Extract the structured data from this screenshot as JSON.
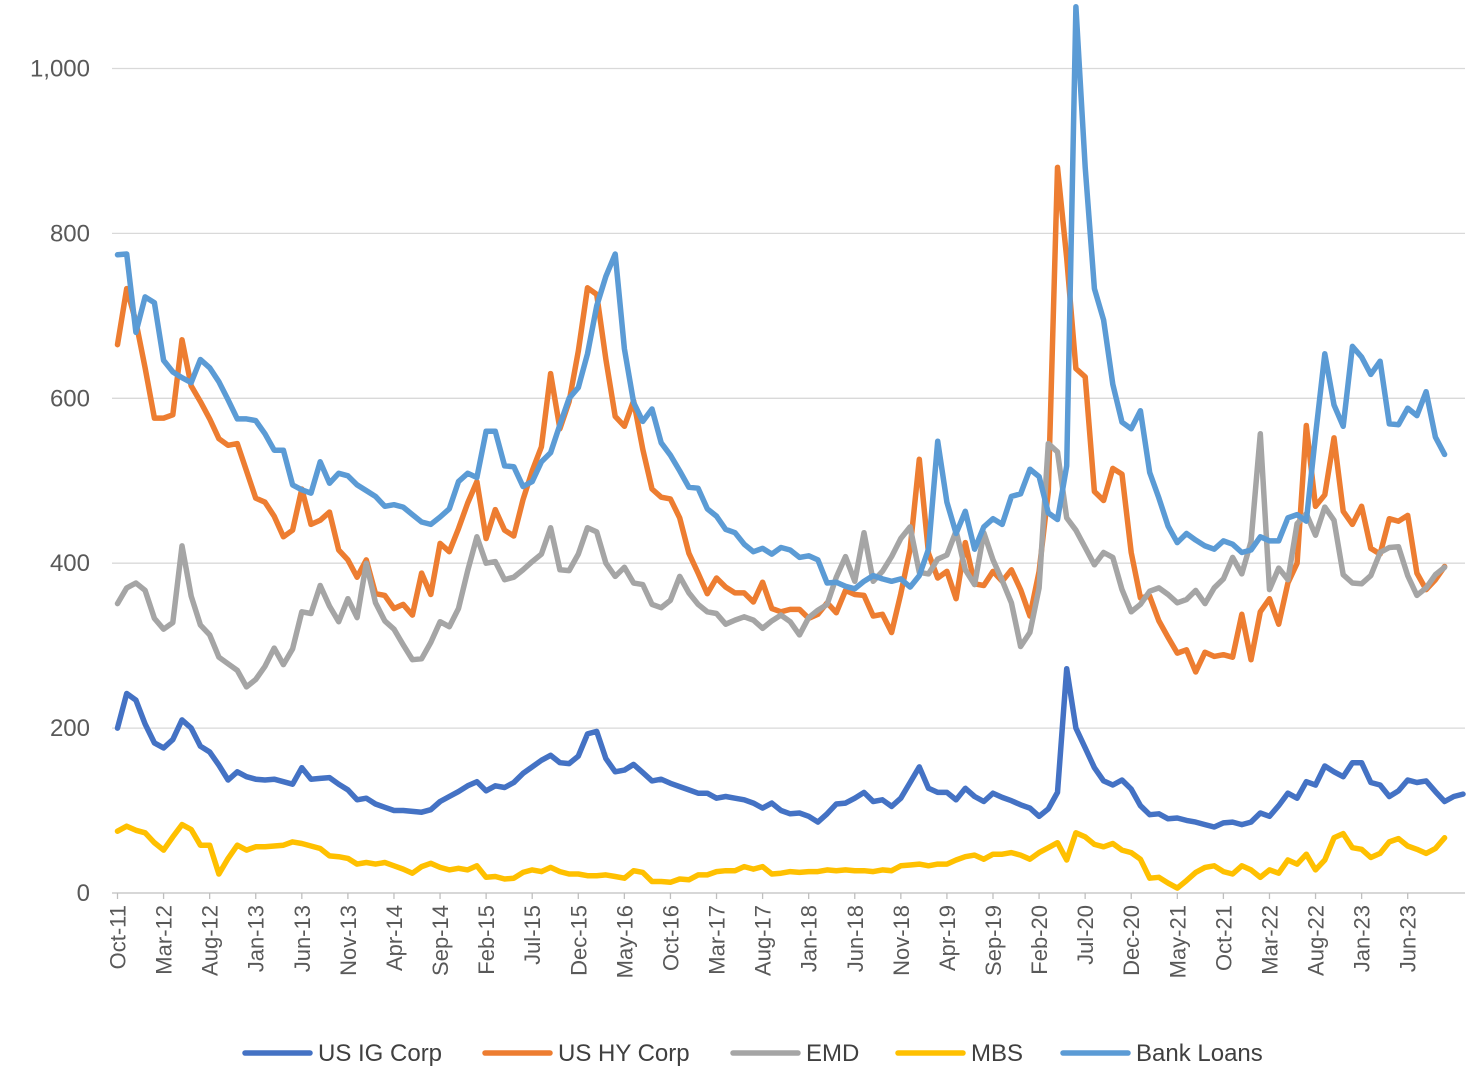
{
  "chart_data": {
    "type": "line",
    "title": "",
    "xlabel": "",
    "ylabel": "",
    "ylim": [
      0,
      1080
    ],
    "yticks": [
      0,
      200,
      400,
      600,
      800,
      1000
    ],
    "ytick_labels": [
      "0",
      "200",
      "400",
      "600",
      "800",
      "1,000"
    ],
    "grid": "horizontal",
    "legend": "bottom",
    "x_start": "Oct-11",
    "x_step_months": 1,
    "xtick_labels": [
      "Oct-11",
      "Mar-12",
      "Aug-12",
      "Jan-13",
      "Jun-13",
      "Nov-13",
      "Apr-14",
      "Sep-14",
      "Feb-15",
      "Jul-15",
      "Dec-15",
      "May-16",
      "Oct-16",
      "Mar-17",
      "Aug-17",
      "Jan-18",
      "Jun-18",
      "Nov-18",
      "Apr-19",
      "Sep-19",
      "Feb-20",
      "Jul-20",
      "Dec-20",
      "May-21",
      "Oct-21",
      "Mar-22",
      "Aug-22",
      "Jan-23",
      "Jun-23"
    ],
    "series": [
      {
        "name": "US IG Corp",
        "color": "#4472c4",
        "values": [
          200,
          242,
          234,
          205,
          182,
          176,
          186,
          210,
          200,
          178,
          171,
          155,
          137,
          147,
          141,
          138,
          137,
          138,
          135,
          132,
          152,
          138,
          139,
          140,
          132,
          125,
          113,
          115,
          108,
          104,
          100,
          100,
          99,
          98,
          101,
          111,
          117,
          123,
          130,
          135,
          124,
          130,
          128,
          134,
          145,
          153,
          161,
          167,
          158,
          157,
          166,
          193,
          196,
          163,
          147,
          149,
          156,
          146,
          136,
          138,
          133,
          129,
          125,
          121,
          121,
          115,
          117,
          115,
          113,
          109,
          103,
          109,
          100,
          96,
          97,
          93,
          86,
          96,
          108,
          109,
          115,
          122,
          111,
          113,
          105,
          115,
          134,
          153,
          127,
          122,
          122,
          113,
          127,
          117,
          111,
          121,
          116,
          112,
          107,
          103,
          93,
          102,
          122,
          272,
          200,
          176,
          152,
          136,
          131,
          137,
          126,
          106,
          95,
          96,
          90,
          91,
          88,
          86,
          83,
          80,
          85,
          86,
          83,
          86,
          97,
          93,
          106,
          121,
          115,
          135,
          131,
          154,
          147,
          141,
          158,
          158,
          134,
          131,
          117,
          124,
          137,
          134,
          136,
          123,
          111,
          117,
          120
        ]
      },
      {
        "name": "US HY Corp",
        "color": "#ed7d31",
        "values": [
          665,
          733,
          693,
          637,
          576,
          576,
          580,
          671,
          615,
          596,
          575,
          551,
          543,
          545,
          512,
          479,
          474,
          457,
          432,
          440,
          490,
          447,
          452,
          462,
          416,
          404,
          383,
          404,
          363,
          361,
          345,
          350,
          337,
          388,
          362,
          424,
          414,
          442,
          473,
          499,
          430,
          465,
          440,
          433,
          477,
          512,
          541,
          630,
          563,
          596,
          657,
          734,
          726,
          647,
          578,
          566,
          597,
          538,
          490,
          480,
          478,
          455,
          412,
          388,
          363,
          382,
          371,
          364,
          364,
          353,
          377,
          345,
          341,
          344,
          344,
          333,
          338,
          352,
          340,
          367,
          362,
          361,
          336,
          338,
          316,
          363,
          417,
          526,
          412,
          382,
          390,
          357,
          425,
          375,
          373,
          390,
          378,
          392,
          368,
          336,
          390,
          487,
          880,
          770,
          636,
          626,
          487,
          476,
          515,
          508,
          413,
          358,
          360,
          330,
          310,
          291,
          295,
          268,
          292,
          287,
          289,
          286,
          338,
          283,
          341,
          357,
          326,
          376,
          400,
          567,
          469,
          483,
          552,
          463,
          447,
          469,
          418,
          411,
          454,
          451,
          458,
          388,
          368,
          380,
          396
        ]
      },
      {
        "name": "EMD",
        "color": "#a5a5a5",
        "values": [
          351,
          370,
          376,
          367,
          333,
          320,
          328,
          421,
          360,
          325,
          313,
          286,
          278,
          270,
          250,
          259,
          275,
          297,
          277,
          296,
          341,
          339,
          373,
          348,
          329,
          357,
          334,
          400,
          352,
          330,
          320,
          301,
          283,
          284,
          304,
          329,
          323,
          345,
          391,
          432,
          400,
          402,
          380,
          383,
          392,
          402,
          411,
          443,
          392,
          391,
          411,
          443,
          438,
          400,
          384,
          395,
          376,
          374,
          350,
          346,
          355,
          384,
          364,
          350,
          341,
          339,
          326,
          331,
          335,
          331,
          321,
          330,
          337,
          329,
          313,
          334,
          343,
          350,
          383,
          408,
          378,
          437,
          378,
          390,
          408,
          430,
          444,
          389,
          387,
          405,
          410,
          439,
          392,
          374,
          437,
          404,
          379,
          352,
          299,
          316,
          370,
          545,
          535,
          455,
          440,
          419,
          398,
          413,
          407,
          368,
          341,
          350,
          366,
          370,
          362,
          352,
          356,
          367,
          351,
          370,
          381,
          407,
          387,
          426,
          557,
          368,
          394,
          380,
          448,
          460,
          434,
          468,
          452,
          386,
          376,
          375,
          385,
          413,
          419,
          420,
          385,
          361,
          370,
          386,
          395
        ]
      },
      {
        "name": "MBS",
        "color": "#ffc000",
        "values": [
          75,
          81,
          76,
          73,
          61,
          52,
          68,
          83,
          77,
          58,
          58,
          23,
          42,
          58,
          52,
          56,
          56,
          57,
          58,
          62,
          60,
          57,
          54,
          45,
          44,
          42,
          35,
          37,
          35,
          37,
          33,
          29,
          24,
          32,
          36,
          31,
          28,
          30,
          28,
          33,
          19,
          20,
          17,
          18,
          25,
          28,
          26,
          31,
          26,
          23,
          23,
          21,
          21,
          22,
          20,
          18,
          27,
          25,
          14,
          14,
          13,
          17,
          16,
          22,
          22,
          26,
          27,
          27,
          32,
          29,
          32,
          23,
          24,
          26,
          25,
          26,
          26,
          28,
          27,
          28,
          27,
          27,
          26,
          28,
          27,
          33,
          34,
          35,
          33,
          35,
          35,
          40,
          44,
          46,
          41,
          47,
          47,
          49,
          46,
          41,
          49,
          55,
          61,
          40,
          73,
          68,
          59,
          56,
          60,
          52,
          49,
          41,
          18,
          19,
          12,
          6,
          15,
          25,
          31,
          33,
          26,
          23,
          33,
          28,
          19,
          28,
          24,
          40,
          35,
          47,
          28,
          40,
          67,
          72,
          55,
          53,
          43,
          48,
          62,
          66,
          57,
          53,
          48,
          54,
          67
        ]
      },
      {
        "name": "Bank Loans",
        "color": "#5b9bd5",
        "values": [
          774,
          775,
          680,
          723,
          716,
          646,
          632,
          625,
          619,
          647,
          637,
          620,
          598,
          575,
          575,
          573,
          557,
          537,
          537,
          495,
          489,
          485,
          523,
          497,
          509,
          506,
          495,
          488,
          481,
          469,
          471,
          468,
          459,
          450,
          447,
          456,
          466,
          499,
          509,
          504,
          560,
          560,
          518,
          517,
          493,
          499,
          523,
          534,
          568,
          600,
          613,
          654,
          712,
          748,
          775,
          660,
          595,
          572,
          587,
          546,
          531,
          512,
          492,
          491,
          466,
          457,
          441,
          437,
          423,
          414,
          418,
          411,
          419,
          416,
          407,
          409,
          404,
          376,
          377,
          372,
          369,
          378,
          385,
          381,
          378,
          381,
          371,
          385,
          417,
          548,
          474,
          436,
          463,
          417,
          444,
          454,
          447,
          481,
          484,
          514,
          505,
          461,
          453,
          518,
          1075,
          880,
          733,
          695,
          617,
          571,
          563,
          585,
          510,
          479,
          445,
          425,
          436,
          428,
          421,
          417,
          427,
          423,
          413,
          416,
          432,
          427,
          427,
          455,
          459,
          451,
          555,
          654,
          592,
          566,
          663,
          650,
          629,
          645,
          569,
          568,
          588,
          579,
          608,
          553,
          532
        ]
      }
    ]
  }
}
